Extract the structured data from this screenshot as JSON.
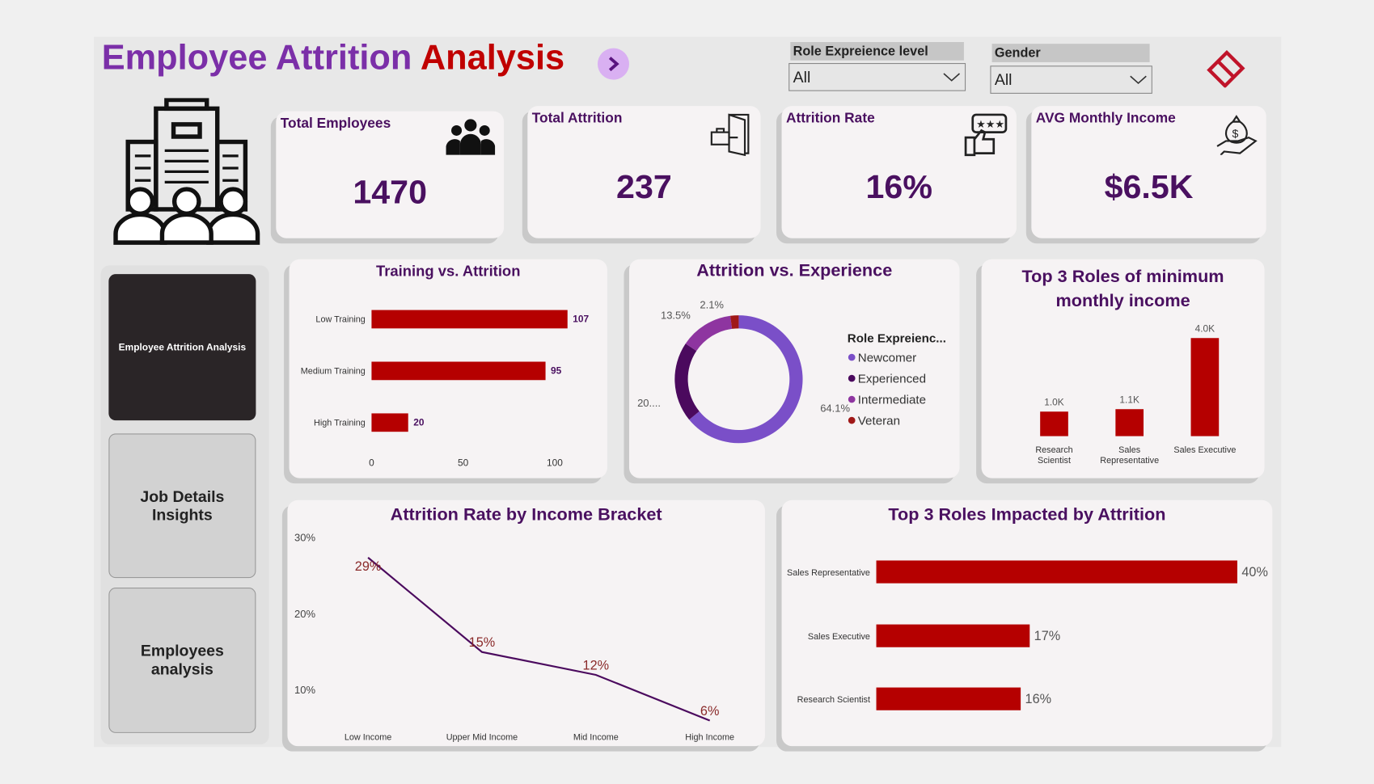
{
  "header": {
    "title_part1": "Employee Attrition ",
    "title_part2": "Analysis"
  },
  "filters": [
    {
      "label": "Role Expreience level",
      "value": "All"
    },
    {
      "label": "Gender",
      "value": "All"
    }
  ],
  "kpis": [
    {
      "label": "Total Employees",
      "value": "1470",
      "icon": "people-group-icon"
    },
    {
      "label": "Total Attrition",
      "value": "237",
      "icon": "exit-door-icon"
    },
    {
      "label": "Attrition Rate",
      "value": "16%",
      "icon": "rating-thumbs-icon"
    },
    {
      "label": "AVG Monthly Income",
      "value": "$6.5K",
      "icon": "money-bag-hand-icon"
    }
  ],
  "nav": [
    {
      "label": "Employee Attrition Analysis",
      "active": true
    },
    {
      "label": "Job Details Insights"
    },
    {
      "label": "Employees analysis"
    }
  ],
  "colors": {
    "accent_red": "#b50000",
    "title_purple": "#4a1060",
    "brand_purple": "#7b2fa8"
  },
  "chart_data": [
    {
      "type": "bar",
      "orientation": "horizontal",
      "title": "Training vs. Attrition",
      "categories": [
        "Low Training",
        "Medium Training",
        "High Training"
      ],
      "values": [
        107,
        95,
        20
      ],
      "data_labels": [
        "107",
        "95",
        "20"
      ],
      "xticks": [
        "0",
        "50",
        "100"
      ],
      "xlim": [
        0,
        110
      ]
    },
    {
      "type": "pie",
      "donut": true,
      "title": "Attrition vs. Experience",
      "legend_title": "Role Expreienc...",
      "legend_position": "right",
      "slices": [
        {
          "name": "Newcomer",
          "value": 64.1,
          "label": "64.1%",
          "color": "#7a4fc8"
        },
        {
          "name": "Experienced",
          "value": 20.3,
          "label": "20....",
          "color": "#4b0a5e"
        },
        {
          "name": "Intermediate",
          "value": 13.5,
          "label": "13.5%",
          "color": "#8e35a0"
        },
        {
          "name": "Veteran",
          "value": 2.1,
          "label": "2.1%",
          "color": "#a01818"
        }
      ]
    },
    {
      "type": "bar",
      "title": "Top 3 Roles of minimum monthly income",
      "categories": [
        "Research Scientist",
        "Sales Representative",
        "Sales Executive"
      ],
      "values": [
        1.0,
        1.1,
        4.0
      ],
      "data_labels": [
        "1.0K",
        "1.1K",
        "4.0K"
      ]
    },
    {
      "type": "line",
      "title": "Attrition Rate by Income Bracket",
      "categories": [
        "Low Income",
        "Upper Mid Income",
        "Mid Income",
        "High Income"
      ],
      "values": [
        29,
        15,
        12,
        6
      ],
      "data_labels": [
        "29%",
        "15%",
        "12%",
        "6%"
      ],
      "yticks": [
        "30%",
        "20%",
        "10%"
      ]
    },
    {
      "type": "bar",
      "orientation": "horizontal",
      "title": "Top 3 Roles Impacted by Attrition",
      "categories": [
        "Sales Representative",
        "Sales Executive",
        "Research Scientist"
      ],
      "values": [
        40,
        17,
        16
      ],
      "data_labels": [
        "40%",
        "17%",
        "16%"
      ]
    }
  ]
}
